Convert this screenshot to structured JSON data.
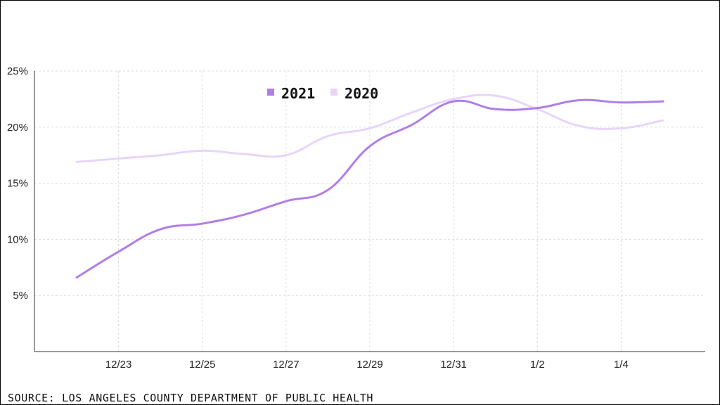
{
  "chart_data": {
    "type": "line",
    "title": "",
    "xlabel": "",
    "ylabel": "",
    "x": [
      "12/22",
      "12/23",
      "12/24",
      "12/25",
      "12/26",
      "12/27",
      "12/28",
      "12/29",
      "12/30",
      "12/31",
      "1/1",
      "1/2",
      "1/3",
      "1/4",
      "1/5"
    ],
    "x_ticks": [
      "12/23",
      "12/25",
      "12/27",
      "12/29",
      "12/31",
      "1/2",
      "1/4"
    ],
    "ylim": [
      0,
      25
    ],
    "y_ticks": [
      5,
      10,
      15,
      20,
      25
    ],
    "y_tick_labels": [
      "5%",
      "10%",
      "15%",
      "20%",
      "25%"
    ],
    "grid": true,
    "legend_position": "top-center",
    "series": [
      {
        "name": "2021",
        "color": "#b07ee8",
        "values": [
          6.6,
          8.9,
          10.9,
          11.4,
          12.2,
          13.4,
          14.4,
          18.3,
          20.2,
          22.3,
          21.6,
          21.7,
          22.4,
          22.2,
          22.3
        ]
      },
      {
        "name": "2020",
        "color": "#e8d5fa",
        "values": [
          16.9,
          17.2,
          17.5,
          17.9,
          17.6,
          17.5,
          19.2,
          19.9,
          21.3,
          22.5,
          22.8,
          21.6,
          20.1,
          19.9,
          20.6
        ]
      }
    ]
  },
  "source_text": "SOURCE: LOS ANGELES COUNTY DEPARTMENT OF PUBLIC HEALTH"
}
